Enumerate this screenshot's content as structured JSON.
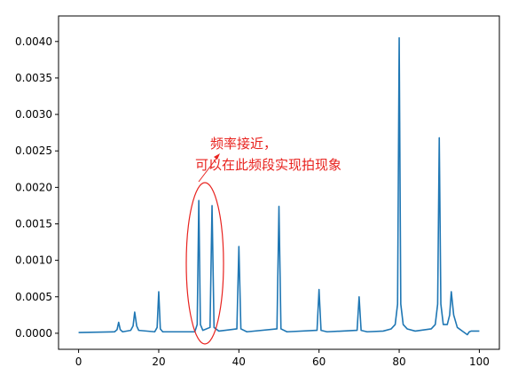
{
  "chart_data": {
    "type": "line",
    "color": "#1f77b4",
    "x": [
      0,
      9,
      9.6,
      10,
      10.4,
      11,
      13,
      13.6,
      14,
      14.5,
      15,
      19,
      19.6,
      20,
      20.4,
      21,
      29,
      29.6,
      30,
      30.4,
      31,
      32.8,
      33.3,
      33.8,
      35,
      39.5,
      40,
      40.5,
      42,
      49.5,
      50,
      50.5,
      52,
      59.5,
      60,
      60.5,
      62,
      69.5,
      70,
      70.5,
      72,
      76,
      78,
      79,
      79.6,
      80,
      80.4,
      81,
      82,
      84,
      88,
      89,
      89.6,
      90,
      90.4,
      91,
      92,
      92.6,
      93,
      93.6,
      94.5,
      96,
      97,
      97.5,
      98,
      100
    ],
    "values": [
      1e-05,
      2e-05,
      5e-05,
      0.00015,
      5e-05,
      2e-05,
      4e-05,
      0.0001,
      0.00029,
      0.0001,
      4e-05,
      2e-05,
      8e-05,
      0.00057,
      6e-05,
      2e-05,
      2e-05,
      0.00012,
      0.00182,
      0.00012,
      4e-05,
      8e-05,
      0.00175,
      8e-05,
      3e-05,
      6e-05,
      0.00119,
      6e-05,
      2e-05,
      6e-05,
      0.00174,
      6e-05,
      2e-05,
      4e-05,
      0.0006,
      4e-05,
      2e-05,
      4e-05,
      0.0005,
      4e-05,
      2e-05,
      3e-05,
      6e-05,
      0.00012,
      0.0004,
      0.00405,
      0.0004,
      0.00012,
      6e-05,
      3e-05,
      6e-05,
      0.00012,
      0.0004,
      0.00268,
      0.0004,
      0.00012,
      0.00012,
      0.00025,
      0.00057,
      0.00025,
      8e-05,
      2e-05,
      -2e-05,
      2e-05,
      3e-05,
      3e-05
    ],
    "xlim": [
      -5,
      105
    ],
    "xticks": [
      0,
      20,
      40,
      60,
      80,
      100
    ],
    "ylim": [
      -0.00022,
      0.00435
    ],
    "yticks": [
      {
        "value": 0,
        "label": "0.0000"
      },
      {
        "value": 0.0005,
        "label": "0.0005"
      },
      {
        "value": 0.001,
        "label": "0.0010"
      },
      {
        "value": 0.0015,
        "label": "0.0015"
      },
      {
        "value": 0.002,
        "label": "0.0020"
      },
      {
        "value": 0.0025,
        "label": "0.0025"
      },
      {
        "value": 0.003,
        "label": "0.0030"
      },
      {
        "value": 0.0035,
        "label": "0.0035"
      },
      {
        "value": 0.004,
        "label": "0.0040"
      }
    ],
    "annotations": [
      "频率接近，",
      "可以在此频段实现拍现象"
    ],
    "annotation_color": "#e8231f"
  }
}
